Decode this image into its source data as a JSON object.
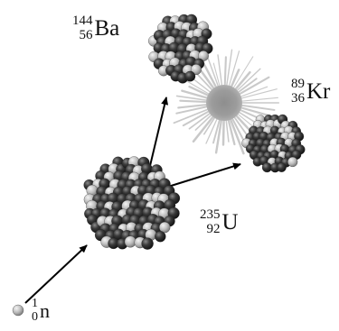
{
  "particles": [
    {
      "id": "neutron",
      "symbol": "n",
      "mass_number": "1",
      "atomic_number": "0"
    },
    {
      "id": "uranium",
      "symbol": "U",
      "mass_number": "235",
      "atomic_number": "92"
    },
    {
      "id": "barium",
      "symbol": "Ba",
      "mass_number": "144",
      "atomic_number": "56"
    },
    {
      "id": "krypton",
      "symbol": "Kr",
      "mass_number": "89",
      "atomic_number": "36"
    }
  ],
  "colors": {
    "nucleon_dark": "#2e2e2e",
    "nucleon_light": "#bdbdbd",
    "arrow": "#000000",
    "burst": "#9a9a9a"
  }
}
